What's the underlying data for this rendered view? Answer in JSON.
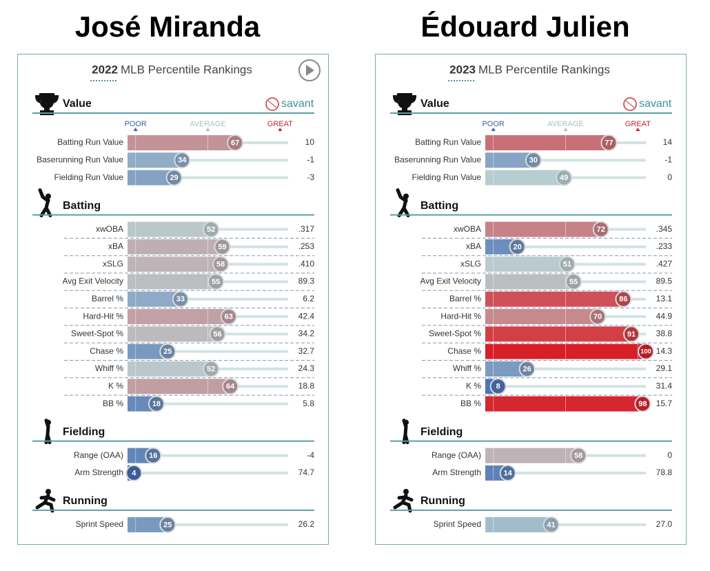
{
  "xlim": [
    0,
    100
  ],
  "color_scale": [
    "#3b63ae",
    "#b9cfd2",
    "#d71f28"
  ],
  "panels": [
    {
      "player": "José Miranda",
      "year": "2022",
      "heading": "MLB Percentile Rankings",
      "logo": "savant",
      "scale_labels": [
        "POOR",
        "AVERAGE",
        "GREAT"
      ],
      "sections": [
        {
          "title": "Value",
          "rows": [
            {
              "label": "Batting Run Value",
              "percentile": 67,
              "stat": "10"
            },
            {
              "label": "Baserunning Run Value",
              "percentile": 34,
              "stat": "-1"
            },
            {
              "label": "Fielding Run Value",
              "percentile": 29,
              "stat": "-3"
            }
          ]
        },
        {
          "title": "Batting",
          "rows": [
            {
              "label": "xwOBA",
              "percentile": 52,
              "stat": ".317"
            },
            {
              "label": "xBA",
              "percentile": 59,
              "stat": ".253"
            },
            {
              "label": "xSLG",
              "percentile": 58,
              "stat": ".410"
            },
            {
              "label": "Avg Exit Velocity",
              "percentile": 55,
              "stat": "89.3"
            },
            {
              "label": "Barrel %",
              "percentile": 33,
              "stat": "6.2"
            },
            {
              "label": "Hard-Hit %",
              "percentile": 63,
              "stat": "42.4"
            },
            {
              "label": "Sweet-Spot %",
              "percentile": 56,
              "stat": "34.2"
            },
            {
              "label": "Chase %",
              "percentile": 25,
              "stat": "32.7"
            },
            {
              "label": "Whiff %",
              "percentile": 52,
              "stat": "24.3"
            },
            {
              "label": "K %",
              "percentile": 64,
              "stat": "18.8"
            },
            {
              "label": "BB %",
              "percentile": 18,
              "stat": "5.8"
            }
          ]
        },
        {
          "title": "Fielding",
          "rows": [
            {
              "label": "Range (OAA)",
              "percentile": 16,
              "stat": "-4"
            },
            {
              "label": "Arm Strength",
              "percentile": 4,
              "stat": "74.7"
            }
          ]
        },
        {
          "title": "Running",
          "rows": [
            {
              "label": "Sprint Speed",
              "percentile": 25,
              "stat": "26.2"
            }
          ]
        }
      ]
    },
    {
      "player": "Édouard Julien",
      "year": "2023",
      "heading": "MLB Percentile Rankings",
      "logo": "savant",
      "scale_labels": [
        "POOR",
        "AVERAGE",
        "GREAT"
      ],
      "sections": [
        {
          "title": "Value",
          "rows": [
            {
              "label": "Batting Run Value",
              "percentile": 77,
              "stat": "14"
            },
            {
              "label": "Baserunning Run Value",
              "percentile": 30,
              "stat": "-1"
            },
            {
              "label": "Fielding Run Value",
              "percentile": 49,
              "stat": "0"
            }
          ]
        },
        {
          "title": "Batting",
          "rows": [
            {
              "label": "xwOBA",
              "percentile": 72,
              "stat": ".345"
            },
            {
              "label": "xBA",
              "percentile": 20,
              "stat": ".233"
            },
            {
              "label": "xSLG",
              "percentile": 51,
              "stat": ".427"
            },
            {
              "label": "Avg Exit Velocity",
              "percentile": 55,
              "stat": "89.5"
            },
            {
              "label": "Barrel %",
              "percentile": 86,
              "stat": "13.1"
            },
            {
              "label": "Hard-Hit %",
              "percentile": 70,
              "stat": "44.9"
            },
            {
              "label": "Sweet-Spot %",
              "percentile": 91,
              "stat": "38.8"
            },
            {
              "label": "Chase %",
              "percentile": 100,
              "stat": "14.3"
            },
            {
              "label": "Whiff %",
              "percentile": 26,
              "stat": "29.1"
            },
            {
              "label": "K %",
              "percentile": 8,
              "stat": "31.4"
            },
            {
              "label": "BB %",
              "percentile": 98,
              "stat": "15.7"
            }
          ]
        },
        {
          "title": "Fielding",
          "rows": [
            {
              "label": "Range (OAA)",
              "percentile": 58,
              "stat": "0"
            },
            {
              "label": "Arm Strength",
              "percentile": 14,
              "stat": "78.8"
            }
          ]
        },
        {
          "title": "Running",
          "rows": [
            {
              "label": "Sprint Speed",
              "percentile": 41,
              "stat": "27.0"
            }
          ]
        }
      ]
    }
  ]
}
